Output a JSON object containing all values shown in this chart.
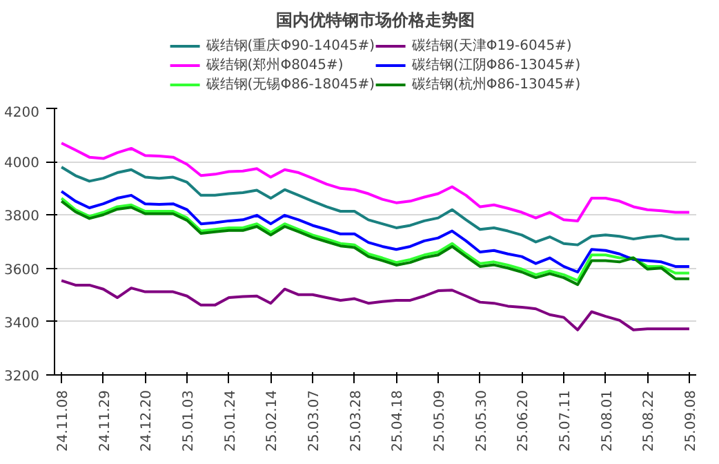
{
  "chart_data": {
    "type": "line",
    "title": "国内优特钢市场价格走势图",
    "categories": [
      "24.11.08",
      null,
      null,
      "24.11.29",
      null,
      null,
      "24.12.20",
      null,
      null,
      "25.01.03",
      null,
      null,
      "25.01.24",
      null,
      null,
      "25.02.14",
      null,
      null,
      "25.03.07",
      null,
      null,
      "25.03.28",
      null,
      null,
      "25.04.18",
      null,
      null,
      "25.05.09",
      null,
      null,
      "25.05.30",
      null,
      null,
      "25.06.20",
      null,
      null,
      "25.07.11",
      null,
      null,
      "25.08.01",
      null,
      null,
      "25.08.22",
      null,
      null,
      "25.09.08"
    ],
    "ylim": [
      3200,
      4200
    ],
    "yticks": [
      3200,
      3400,
      3600,
      3800,
      4000,
      4200
    ],
    "grid": "y",
    "legend": "top",
    "marker": "none",
    "line_style": "solid",
    "series": [
      {
        "name": "碳结钢(重庆Φ90-14045#)",
        "color": "#1a8080",
        "values": [
          3980,
          3948,
          3927,
          3938,
          3959,
          3970,
          3942,
          3938,
          3942,
          3923,
          3874,
          3874,
          3880,
          3884,
          3893,
          3863,
          3895,
          3874,
          3852,
          3831,
          3814,
          3814,
          3782,
          3767,
          3752,
          3761,
          3778,
          3789,
          3820,
          3782,
          3746,
          3752,
          3740,
          3725,
          3699,
          3718,
          3693,
          3688,
          3720,
          3725,
          3720,
          3710,
          3718,
          3723,
          3710,
          3710
        ]
      },
      {
        "name": "碳结钢(郑州Φ8045#)",
        "color": "#ff00ff",
        "values": [
          4070,
          4044,
          4017,
          4012,
          4034,
          4050,
          4023,
          4021,
          4017,
          3990,
          3948,
          3953,
          3963,
          3965,
          3974,
          3942,
          3970,
          3959,
          3938,
          3916,
          3900,
          3895,
          3880,
          3859,
          3846,
          3852,
          3867,
          3880,
          3906,
          3874,
          3831,
          3838,
          3825,
          3810,
          3789,
          3810,
          3782,
          3778,
          3863,
          3863,
          3852,
          3831,
          3820,
          3816,
          3810,
          3810
        ]
      },
      {
        "name": "碳结钢(无锡Φ86-18045#)",
        "color": "#33ff33",
        "values": [
          3863,
          3820,
          3795,
          3810,
          3831,
          3838,
          3814,
          3814,
          3814,
          3789,
          3740,
          3746,
          3752,
          3752,
          3767,
          3735,
          3767,
          3746,
          3725,
          3710,
          3693,
          3688,
          3654,
          3639,
          3622,
          3633,
          3650,
          3661,
          3693,
          3654,
          3618,
          3624,
          3612,
          3597,
          3576,
          3590,
          3576,
          3554,
          3650,
          3650,
          3639,
          3639,
          3607,
          3607,
          3582,
          3582
        ]
      },
      {
        "name": "碳结钢(天津Φ19-6045#)",
        "color": "#800080",
        "values": [
          3554,
          3537,
          3537,
          3522,
          3490,
          3526,
          3512,
          3512,
          3512,
          3496,
          3462,
          3462,
          3490,
          3494,
          3496,
          3469,
          3522,
          3501,
          3501,
          3490,
          3480,
          3486,
          3469,
          3475,
          3480,
          3480,
          3496,
          3516,
          3518,
          3496,
          3473,
          3469,
          3458,
          3454,
          3448,
          3426,
          3416,
          3369,
          3437,
          3420,
          3405,
          3369,
          3373,
          3373,
          3373,
          3373
        ]
      },
      {
        "name": "碳结钢(江阴Φ86-13045#)",
        "color": "#0000ff",
        "values": [
          3889,
          3852,
          3827,
          3842,
          3863,
          3874,
          3842,
          3840,
          3842,
          3820,
          3767,
          3771,
          3778,
          3782,
          3799,
          3767,
          3799,
          3782,
          3761,
          3746,
          3729,
          3729,
          3697,
          3682,
          3671,
          3682,
          3703,
          3714,
          3740,
          3703,
          3661,
          3667,
          3654,
          3644,
          3618,
          3639,
          3607,
          3586,
          3671,
          3667,
          3654,
          3633,
          3629,
          3624,
          3607,
          3607
        ]
      },
      {
        "name": "碳结钢(杭州Φ86-13045#)",
        "color": "#008000",
        "values": [
          3852,
          3812,
          3787,
          3801,
          3822,
          3829,
          3805,
          3805,
          3805,
          3780,
          3731,
          3737,
          3742,
          3742,
          3757,
          3725,
          3757,
          3737,
          3716,
          3700,
          3684,
          3678,
          3644,
          3629,
          3612,
          3622,
          3640,
          3650,
          3682,
          3644,
          3607,
          3613,
          3601,
          3586,
          3565,
          3580,
          3565,
          3539,
          3629,
          3629,
          3624,
          3639,
          3597,
          3601,
          3561,
          3561
        ]
      }
    ]
  }
}
